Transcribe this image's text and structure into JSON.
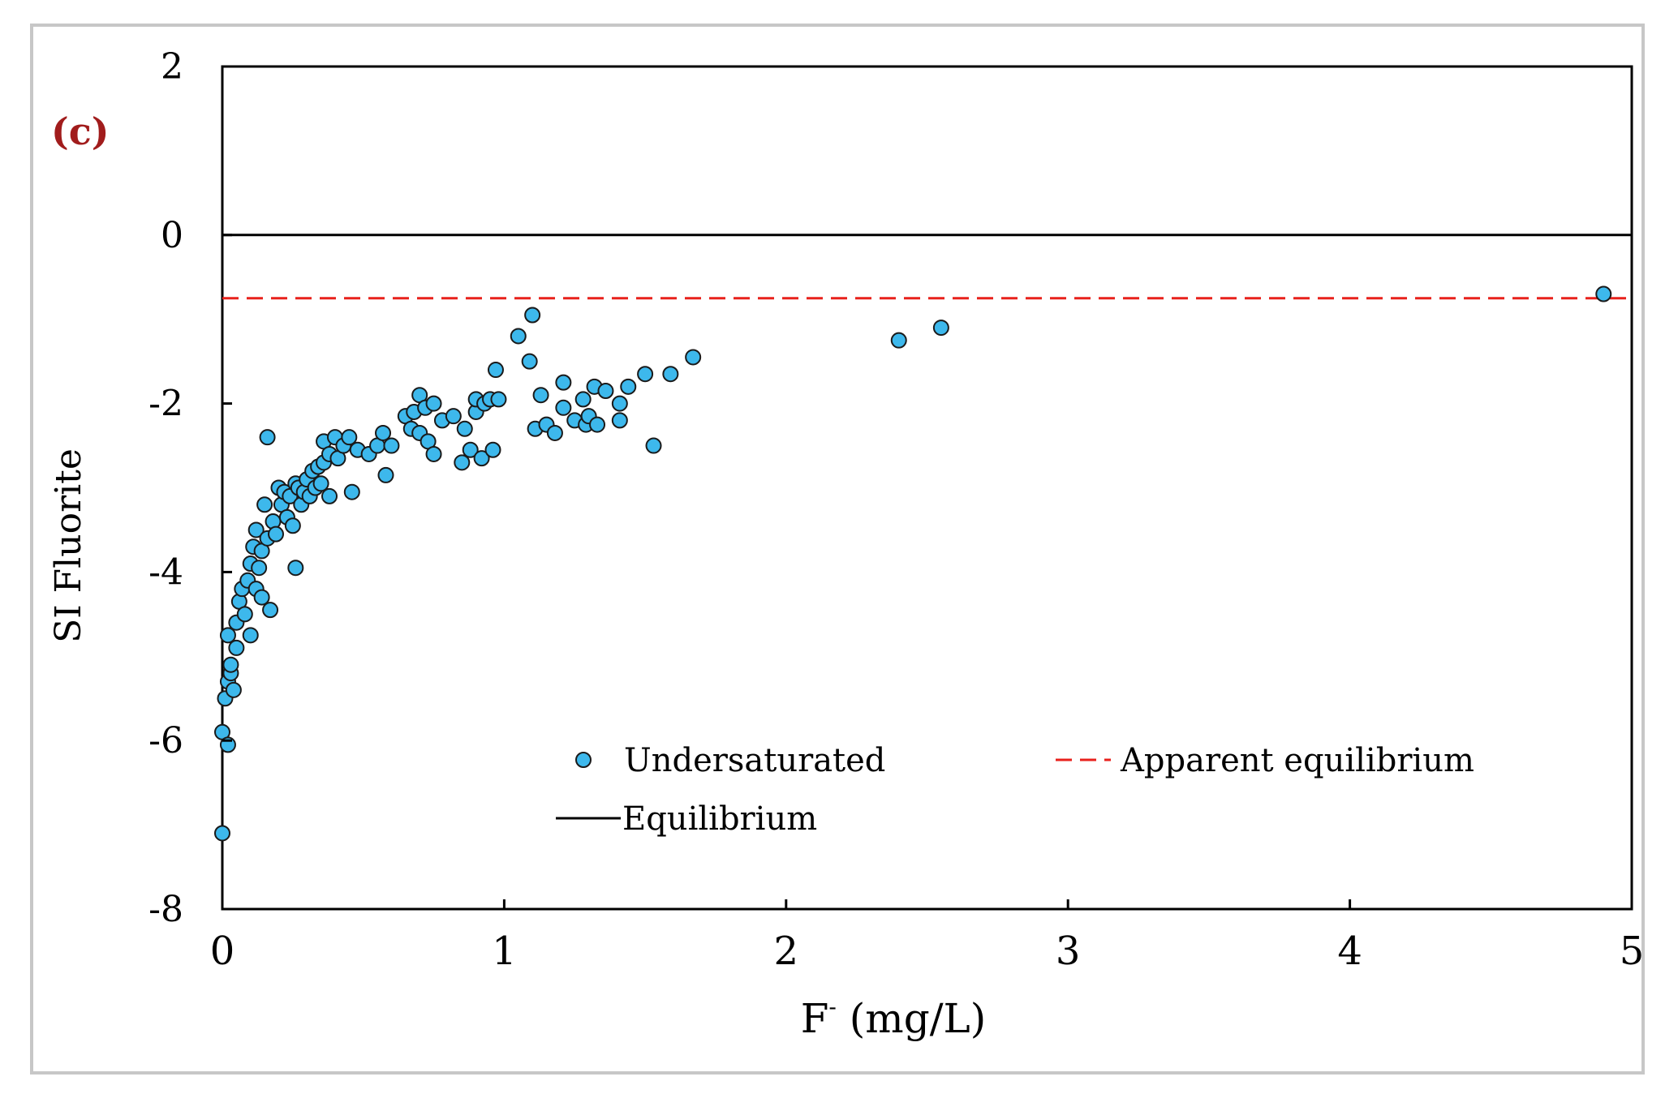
{
  "chart_data": {
    "type": "scatter",
    "panel_label": "(c)",
    "xlabel_main": "F",
    "xlabel_sup": "-",
    "xlabel_unit": " (mg/L)",
    "ylabel": "SI Fluorite",
    "xlim": [
      0,
      5
    ],
    "ylim": [
      -8,
      2
    ],
    "xticks": [
      0,
      1,
      2,
      3,
      4,
      5
    ],
    "yticks": [
      2,
      0,
      -2,
      -4,
      -6,
      -8
    ],
    "colors": {
      "marker_fill": "#3db8ec",
      "marker_edge": "#1a1a1a",
      "equilibrium": "#000000",
      "apparent": "#e8211c",
      "panel_label": "#a11c1c"
    },
    "reference_lines": {
      "equilibrium": {
        "label": "Equilibrium",
        "y": 0
      },
      "apparent": {
        "label": "Apparent equilibrium",
        "y": -0.75
      }
    },
    "legend": {
      "undersaturated": "Undersaturated",
      "apparent": "Apparent equilibrium",
      "equilibrium": "Equilibrium"
    },
    "series": [
      {
        "name": "Undersaturated",
        "points": [
          [
            0.0,
            -7.1
          ],
          [
            0.0,
            -5.9
          ],
          [
            0.02,
            -6.05
          ],
          [
            0.01,
            -5.5
          ],
          [
            0.02,
            -5.3
          ],
          [
            0.03,
            -5.2
          ],
          [
            0.03,
            -5.1
          ],
          [
            0.04,
            -5.4
          ],
          [
            0.05,
            -4.9
          ],
          [
            0.02,
            -4.75
          ],
          [
            0.05,
            -4.6
          ],
          [
            0.06,
            -4.35
          ],
          [
            0.07,
            -4.2
          ],
          [
            0.08,
            -4.5
          ],
          [
            0.09,
            -4.1
          ],
          [
            0.1,
            -4.75
          ],
          [
            0.1,
            -3.9
          ],
          [
            0.11,
            -3.7
          ],
          [
            0.12,
            -4.2
          ],
          [
            0.12,
            -3.5
          ],
          [
            0.13,
            -3.95
          ],
          [
            0.14,
            -3.75
          ],
          [
            0.14,
            -4.3
          ],
          [
            0.15,
            -3.2
          ],
          [
            0.16,
            -3.6
          ],
          [
            0.17,
            -4.45
          ],
          [
            0.16,
            -2.4
          ],
          [
            0.18,
            -3.4
          ],
          [
            0.19,
            -3.55
          ],
          [
            0.2,
            -3.0
          ],
          [
            0.21,
            -3.2
          ],
          [
            0.22,
            -3.05
          ],
          [
            0.23,
            -3.35
          ],
          [
            0.24,
            -3.1
          ],
          [
            0.25,
            -3.45
          ],
          [
            0.26,
            -2.95
          ],
          [
            0.27,
            -3.0
          ],
          [
            0.26,
            -3.95
          ],
          [
            0.28,
            -3.2
          ],
          [
            0.29,
            -3.05
          ],
          [
            0.3,
            -2.9
          ],
          [
            0.31,
            -3.1
          ],
          [
            0.32,
            -2.8
          ],
          [
            0.33,
            -3.0
          ],
          [
            0.34,
            -2.75
          ],
          [
            0.35,
            -2.95
          ],
          [
            0.36,
            -2.7
          ],
          [
            0.36,
            -2.45
          ],
          [
            0.38,
            -2.6
          ],
          [
            0.38,
            -3.1
          ],
          [
            0.4,
            -2.4
          ],
          [
            0.41,
            -2.65
          ],
          [
            0.43,
            -2.5
          ],
          [
            0.45,
            -2.4
          ],
          [
            0.46,
            -3.05
          ],
          [
            0.48,
            -2.55
          ],
          [
            0.52,
            -2.6
          ],
          [
            0.55,
            -2.5
          ],
          [
            0.57,
            -2.35
          ],
          [
            0.58,
            -2.85
          ],
          [
            0.6,
            -2.5
          ],
          [
            0.65,
            -2.15
          ],
          [
            0.67,
            -2.3
          ],
          [
            0.68,
            -2.1
          ],
          [
            0.7,
            -1.9
          ],
          [
            0.7,
            -2.35
          ],
          [
            0.72,
            -2.05
          ],
          [
            0.73,
            -2.45
          ],
          [
            0.75,
            -2.0
          ],
          [
            0.75,
            -2.6
          ],
          [
            0.78,
            -2.2
          ],
          [
            0.82,
            -2.15
          ],
          [
            0.85,
            -2.7
          ],
          [
            0.86,
            -2.3
          ],
          [
            0.88,
            -2.55
          ],
          [
            0.9,
            -2.1
          ],
          [
            0.9,
            -1.95
          ],
          [
            0.92,
            -2.65
          ],
          [
            0.93,
            -2.0
          ],
          [
            0.95,
            -1.95
          ],
          [
            0.96,
            -2.55
          ],
          [
            0.97,
            -1.6
          ],
          [
            0.98,
            -1.95
          ],
          [
            1.05,
            -1.2
          ],
          [
            1.09,
            -1.5
          ],
          [
            1.1,
            -0.95
          ],
          [
            1.11,
            -2.3
          ],
          [
            1.13,
            -1.9
          ],
          [
            1.15,
            -2.25
          ],
          [
            1.18,
            -2.35
          ],
          [
            1.21,
            -1.75
          ],
          [
            1.21,
            -2.05
          ],
          [
            1.25,
            -2.2
          ],
          [
            1.28,
            -1.95
          ],
          [
            1.29,
            -2.25
          ],
          [
            1.3,
            -2.15
          ],
          [
            1.32,
            -1.8
          ],
          [
            1.33,
            -2.25
          ],
          [
            1.36,
            -1.85
          ],
          [
            1.41,
            -2.2
          ],
          [
            1.41,
            -2.0
          ],
          [
            1.44,
            -1.8
          ],
          [
            1.5,
            -1.65
          ],
          [
            1.53,
            -2.5
          ],
          [
            1.59,
            -1.65
          ],
          [
            1.67,
            -1.45
          ],
          [
            2.4,
            -1.25
          ],
          [
            2.55,
            -1.1
          ],
          [
            4.9,
            -0.7
          ]
        ]
      }
    ]
  }
}
